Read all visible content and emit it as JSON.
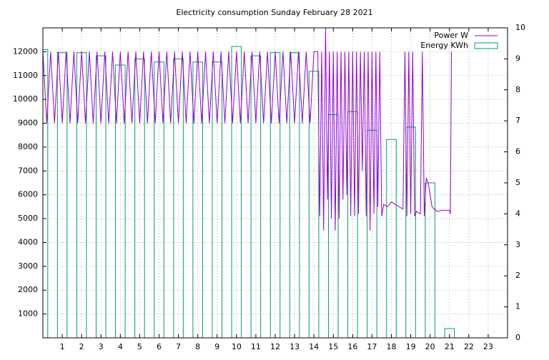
{
  "chart_data": {
    "type": "line",
    "title": "Electricity consumption Sunday February 28 2021",
    "xlim": [
      0,
      24
    ],
    "xticks": [
      1,
      2,
      3,
      4,
      5,
      6,
      7,
      8,
      9,
      10,
      11,
      12,
      13,
      14,
      15,
      16,
      17,
      18,
      19,
      20,
      21,
      22,
      23
    ],
    "ylim": [
      0,
      13000
    ],
    "yticks": [
      1000,
      2000,
      3000,
      4000,
      5000,
      6000,
      7000,
      8000,
      9000,
      10000,
      11000,
      12000
    ],
    "y2lim": [
      0,
      10
    ],
    "y2ticks": [
      0,
      1,
      2,
      3,
      4,
      5,
      6,
      7,
      8,
      9,
      10
    ],
    "grid": true,
    "legend": "top right",
    "series": [
      {
        "name": "Power W",
        "color": "#9400d3",
        "style": "lines",
        "x": [
          0,
          0.2,
          0.4,
          0.6,
          0.8,
          1,
          1.2,
          1.4,
          1.6,
          1.8,
          2,
          2.2,
          2.4,
          2.6,
          2.8,
          3,
          3.2,
          3.4,
          3.6,
          3.8,
          4,
          4.2,
          4.4,
          4.6,
          4.8,
          5,
          5.2,
          5.4,
          5.6,
          5.8,
          6,
          6.2,
          6.4,
          6.6,
          6.8,
          7,
          7.2,
          7.4,
          7.6,
          7.8,
          8,
          8.2,
          8.4,
          8.6,
          8.8,
          9,
          9.2,
          9.4,
          9.6,
          9.8,
          10,
          10.2,
          10.4,
          10.6,
          10.8,
          11,
          11.2,
          11.4,
          11.6,
          11.8,
          12,
          12.2,
          12.4,
          12.6,
          12.8,
          13,
          13.2,
          13.4,
          13.6,
          13.8,
          14,
          14.2,
          14.3,
          14.4,
          14.5,
          14.6,
          14.7,
          14.8,
          14.9,
          15,
          15.1,
          15.2,
          15.3,
          15.4,
          15.5,
          15.6,
          15.7,
          15.8,
          15.9,
          16,
          16.1,
          16.2,
          16.3,
          16.4,
          16.5,
          16.6,
          16.7,
          16.8,
          16.9,
          17,
          17.1,
          17.2,
          17.3,
          17.4,
          17.5,
          17.6,
          17.8,
          18,
          18.2,
          18.4,
          18.6,
          18.7,
          18.8,
          18.9,
          19,
          19.1,
          19.2,
          19.3,
          19.5,
          19.6,
          19.7,
          19.8,
          19.9,
          20,
          20.1,
          20.2,
          20.4,
          20.6,
          21,
          21.05,
          21.1
        ],
        "values": [
          12000,
          9000,
          12000,
          9000,
          12000,
          9000,
          12000,
          9000,
          12000,
          9000,
          12000,
          9000,
          12000,
          9000,
          12000,
          9000,
          12000,
          9000,
          12000,
          9000,
          12000,
          9000,
          12000,
          9000,
          12000,
          9000,
          12000,
          9000,
          12000,
          9000,
          12000,
          9000,
          12000,
          9000,
          12000,
          9000,
          12000,
          9000,
          12000,
          9000,
          12000,
          9000,
          12000,
          9000,
          12000,
          9000,
          12000,
          9000,
          12000,
          9000,
          12000,
          9000,
          12000,
          9000,
          12000,
          9000,
          12000,
          9000,
          12000,
          9000,
          12000,
          9000,
          12000,
          9000,
          12000,
          9000,
          12000,
          9000,
          12000,
          9000,
          12000,
          12000,
          5100,
          12000,
          4500,
          13000,
          5800,
          12000,
          5000,
          12000,
          4500,
          12000,
          5000,
          12000,
          5800,
          12000,
          6000,
          12000,
          5100,
          12000,
          5100,
          12000,
          5200,
          12000,
          7000,
          12000,
          5100,
          12000,
          4500,
          12000,
          5200,
          12000,
          5500,
          12000,
          5100,
          5600,
          5500,
          5700,
          5600,
          5500,
          5400,
          12000,
          5100,
          12000,
          5200,
          12000,
          5100,
          5300,
          5200,
          12000,
          5100,
          6700,
          6500,
          6000,
          5500,
          5400,
          5300,
          5350,
          5350,
          5200,
          12000
        ]
      },
      {
        "name": "Energy KWh",
        "color": "#009e73",
        "style": "boxes",
        "axis": "y2",
        "x": [
          0,
          1,
          2,
          3,
          4,
          5,
          6,
          7,
          8,
          9,
          10,
          11,
          12,
          13,
          14,
          15,
          16,
          17,
          18,
          19,
          20,
          21
        ],
        "values": [
          9.3,
          9.2,
          9.2,
          9.1,
          8.8,
          9.0,
          8.9,
          9.0,
          8.9,
          8.9,
          9.4,
          9.1,
          9.2,
          9.2,
          8.6,
          7.2,
          7.3,
          6.7,
          6.4,
          6.8,
          5.0,
          0.3
        ]
      }
    ]
  }
}
